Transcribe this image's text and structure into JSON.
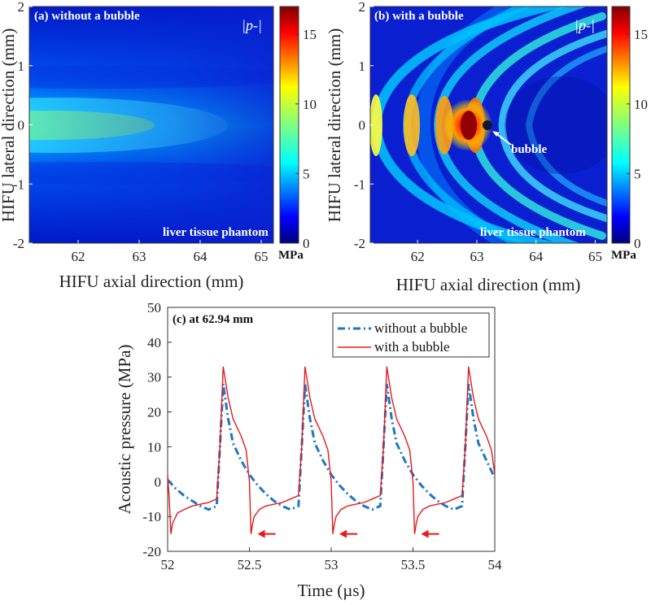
{
  "colors": {
    "bg": "#ffffff",
    "axis": "#333333",
    "series_without": "#1f77c0",
    "series_with": "#e41a1c",
    "arrow": "#e41a1c"
  },
  "colorbar_ticks": [
    "0",
    "5",
    "10",
    "15"
  ],
  "colorbar_unit": "MPa",
  "quantity_label": "p-",
  "chart_data": [
    {
      "type": "heatmap",
      "title": "(a) without a bubble",
      "annotation": "liver tissue phantom",
      "xlabel": "HIFU axial direction (mm)",
      "ylabel": "HIFU lateral direction (mm)",
      "xlim": [
        61.2,
        65.2
      ],
      "ylim": [
        -2,
        2
      ],
      "xticks": [
        "62",
        "63",
        "64",
        "65"
      ],
      "yticks": [
        "-2",
        "-1",
        "0",
        "1",
        "2"
      ],
      "clim": [
        0,
        17
      ],
      "peak_value": 8.5
    },
    {
      "type": "heatmap",
      "title": "(b) with a bubble",
      "annotation": "liver tissue phantom",
      "bubble_label": "bubble",
      "bubble_position": [
        63.15,
        0
      ],
      "xlabel": "HIFU axial direction (mm)",
      "ylabel": "HIFU lateral direction (mm)",
      "xlim": [
        61.2,
        65.2
      ],
      "ylim": [
        -2,
        2
      ],
      "xticks": [
        "62",
        "63",
        "64",
        "65"
      ],
      "yticks": [
        "-2",
        "-1",
        "0",
        "1",
        "2"
      ],
      "clim": [
        0,
        17
      ],
      "peak_value": 17
    },
    {
      "type": "line",
      "title": "(c) at 62.94 mm",
      "xlabel": "Time (µs)",
      "ylabel": "Acoustic pressure (MPa)",
      "xlim": [
        52,
        54
      ],
      "ylim": [
        -20,
        50
      ],
      "xticks": [
        "52",
        "52.5",
        "53",
        "53.5",
        "54"
      ],
      "yticks": [
        "-20",
        "-10",
        "0",
        "10",
        "20",
        "30",
        "40",
        "50"
      ],
      "series": [
        {
          "name": "without a bubble",
          "x": [
            52.0,
            52.05,
            52.1,
            52.15,
            52.2,
            52.25,
            52.3,
            52.32,
            52.34,
            52.37,
            52.4,
            52.45,
            52.5,
            52.55,
            52.6,
            52.65,
            52.7,
            52.75,
            52.8,
            52.82,
            52.84,
            52.87,
            52.9,
            52.95,
            53.0,
            53.05,
            53.1,
            53.15,
            53.2,
            53.25,
            53.3,
            53.32,
            53.34,
            53.37,
            53.4,
            53.45,
            53.5,
            53.55,
            53.6,
            53.65,
            53.7,
            53.75,
            53.8,
            53.82,
            53.84,
            53.87,
            53.9,
            53.95,
            54.0
          ],
          "values": [
            0.5,
            -2,
            -4,
            -5.5,
            -7,
            -8,
            -7,
            10,
            28,
            18,
            11,
            6,
            2,
            -1,
            -3.5,
            -5.5,
            -7,
            -8,
            -7,
            10,
            28,
            18,
            11,
            6,
            2,
            -1,
            -3.5,
            -5.5,
            -7,
            -8,
            -7,
            10,
            28,
            18,
            11,
            6,
            2,
            -1,
            -3.5,
            -5.5,
            -7,
            -8,
            -7,
            10,
            28,
            18,
            11,
            6,
            1
          ]
        },
        {
          "name": "with a bubble",
          "x": [
            52.0,
            52.01,
            52.02,
            52.03,
            52.06,
            52.1,
            52.15,
            52.2,
            52.25,
            52.3,
            52.32,
            52.34,
            52.37,
            52.4,
            52.45,
            52.48,
            52.5,
            52.51,
            52.52,
            52.53,
            52.56,
            52.6,
            52.65,
            52.7,
            52.75,
            52.8,
            52.82,
            52.84,
            52.87,
            52.9,
            52.95,
            52.98,
            53.0,
            53.01,
            53.02,
            53.03,
            53.06,
            53.1,
            53.15,
            53.2,
            53.25,
            53.3,
            53.32,
            53.34,
            53.37,
            53.4,
            53.45,
            53.48,
            53.5,
            53.51,
            53.52,
            53.53,
            53.56,
            53.6,
            53.65,
            53.7,
            53.75,
            53.8,
            53.82,
            53.84,
            53.87,
            53.9,
            53.95,
            53.98,
            54.0
          ],
          "values": [
            2,
            -5,
            -15,
            -12,
            -9,
            -8,
            -7,
            -6.5,
            -6,
            -5,
            10,
            33,
            24,
            18,
            13,
            9,
            0,
            -15,
            -12,
            -10,
            -8,
            -7,
            -6.5,
            -6,
            -5,
            -4,
            10,
            33,
            24,
            18,
            13,
            9,
            0,
            -15,
            -12,
            -10,
            -8,
            -7,
            -6.5,
            -6,
            -5,
            -4,
            10,
            33,
            24,
            18,
            13,
            9,
            0,
            -15,
            -12,
            -10,
            -8,
            -7,
            -6.5,
            -6,
            -5,
            -4,
            10,
            33,
            24,
            18,
            13,
            9,
            2
          ]
        }
      ],
      "arrows_at": [
        [
          52.55,
          -15
        ],
        [
          53.05,
          -15
        ],
        [
          53.55,
          -15
        ]
      ],
      "legend_position": "top-right"
    }
  ]
}
